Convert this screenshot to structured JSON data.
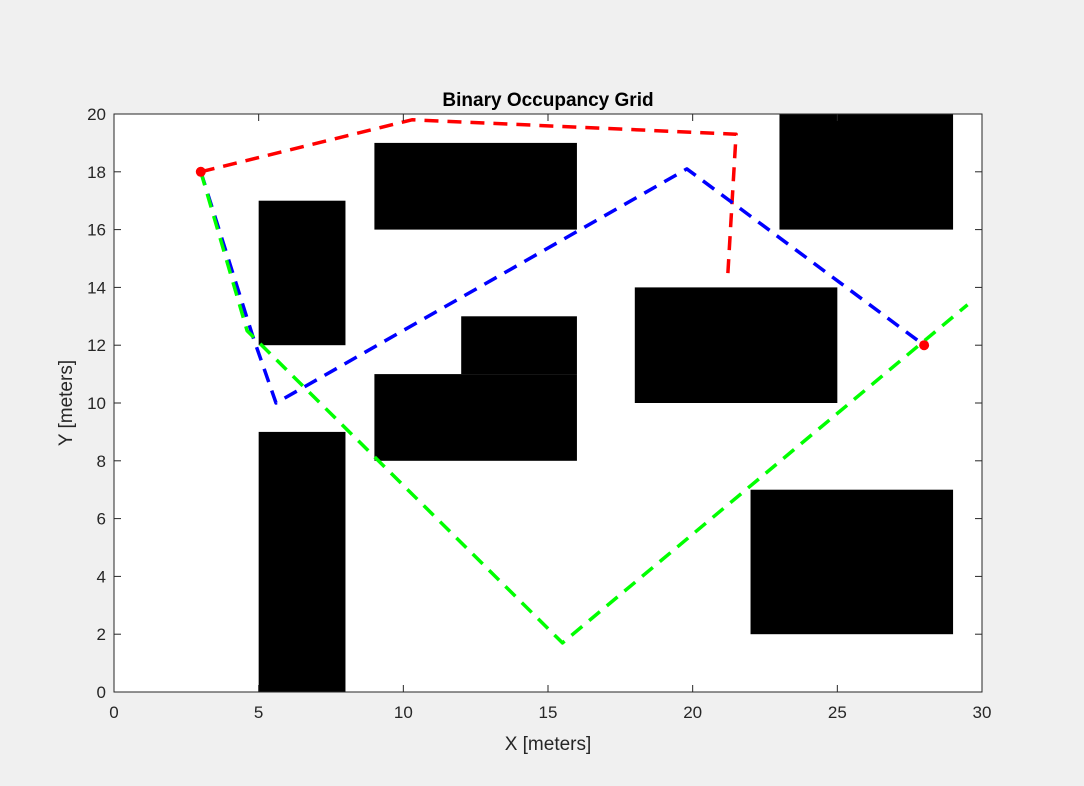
{
  "chart_data": {
    "type": "line",
    "title": "Binary Occupancy Grid",
    "xlabel": "X [meters]",
    "ylabel": "Y [meters]",
    "xlim": [
      0,
      30
    ],
    "ylim": [
      0,
      20
    ],
    "xticks": [
      0,
      5,
      10,
      15,
      20,
      25,
      30
    ],
    "yticks": [
      0,
      2,
      4,
      6,
      8,
      10,
      12,
      14,
      16,
      18,
      20
    ],
    "grid": false,
    "obstacles": [
      {
        "x": [
          5,
          8
        ],
        "y": [
          0,
          9
        ]
      },
      {
        "x": [
          5,
          8
        ],
        "y": [
          12,
          17
        ]
      },
      {
        "x": [
          9,
          16
        ],
        "y": [
          16,
          19
        ]
      },
      {
        "x": [
          9,
          16
        ],
        "y": [
          8,
          11
        ]
      },
      {
        "x": [
          12,
          16
        ],
        "y": [
          11,
          13
        ]
      },
      {
        "x": [
          18,
          25
        ],
        "y": [
          10,
          14
        ]
      },
      {
        "x": [
          23,
          29
        ],
        "y": [
          16,
          20
        ]
      },
      {
        "x": [
          22,
          29
        ],
        "y": [
          2,
          7
        ]
      }
    ],
    "obstacle_color": "#000000",
    "series": [
      {
        "color": "#ff0000",
        "x": [
          3,
          10.3,
          21.5,
          21.2
        ],
        "y": [
          18,
          19.8,
          19.3,
          14.2
        ]
      },
      {
        "color": "#0000ff",
        "x": [
          3,
          4.8,
          5.6,
          19.8,
          28
        ],
        "y": [
          18,
          12.3,
          10,
          18.1,
          12
        ]
      },
      {
        "color": "#00ff00",
        "x": [
          3,
          4.6,
          15.5,
          29.5
        ],
        "y": [
          18,
          12.5,
          1.7,
          13.4
        ]
      }
    ],
    "markers": [
      {
        "x": 3,
        "y": 18,
        "color": "#ff0000"
      },
      {
        "x": 28,
        "y": 12,
        "color": "#ff0000"
      }
    ]
  }
}
